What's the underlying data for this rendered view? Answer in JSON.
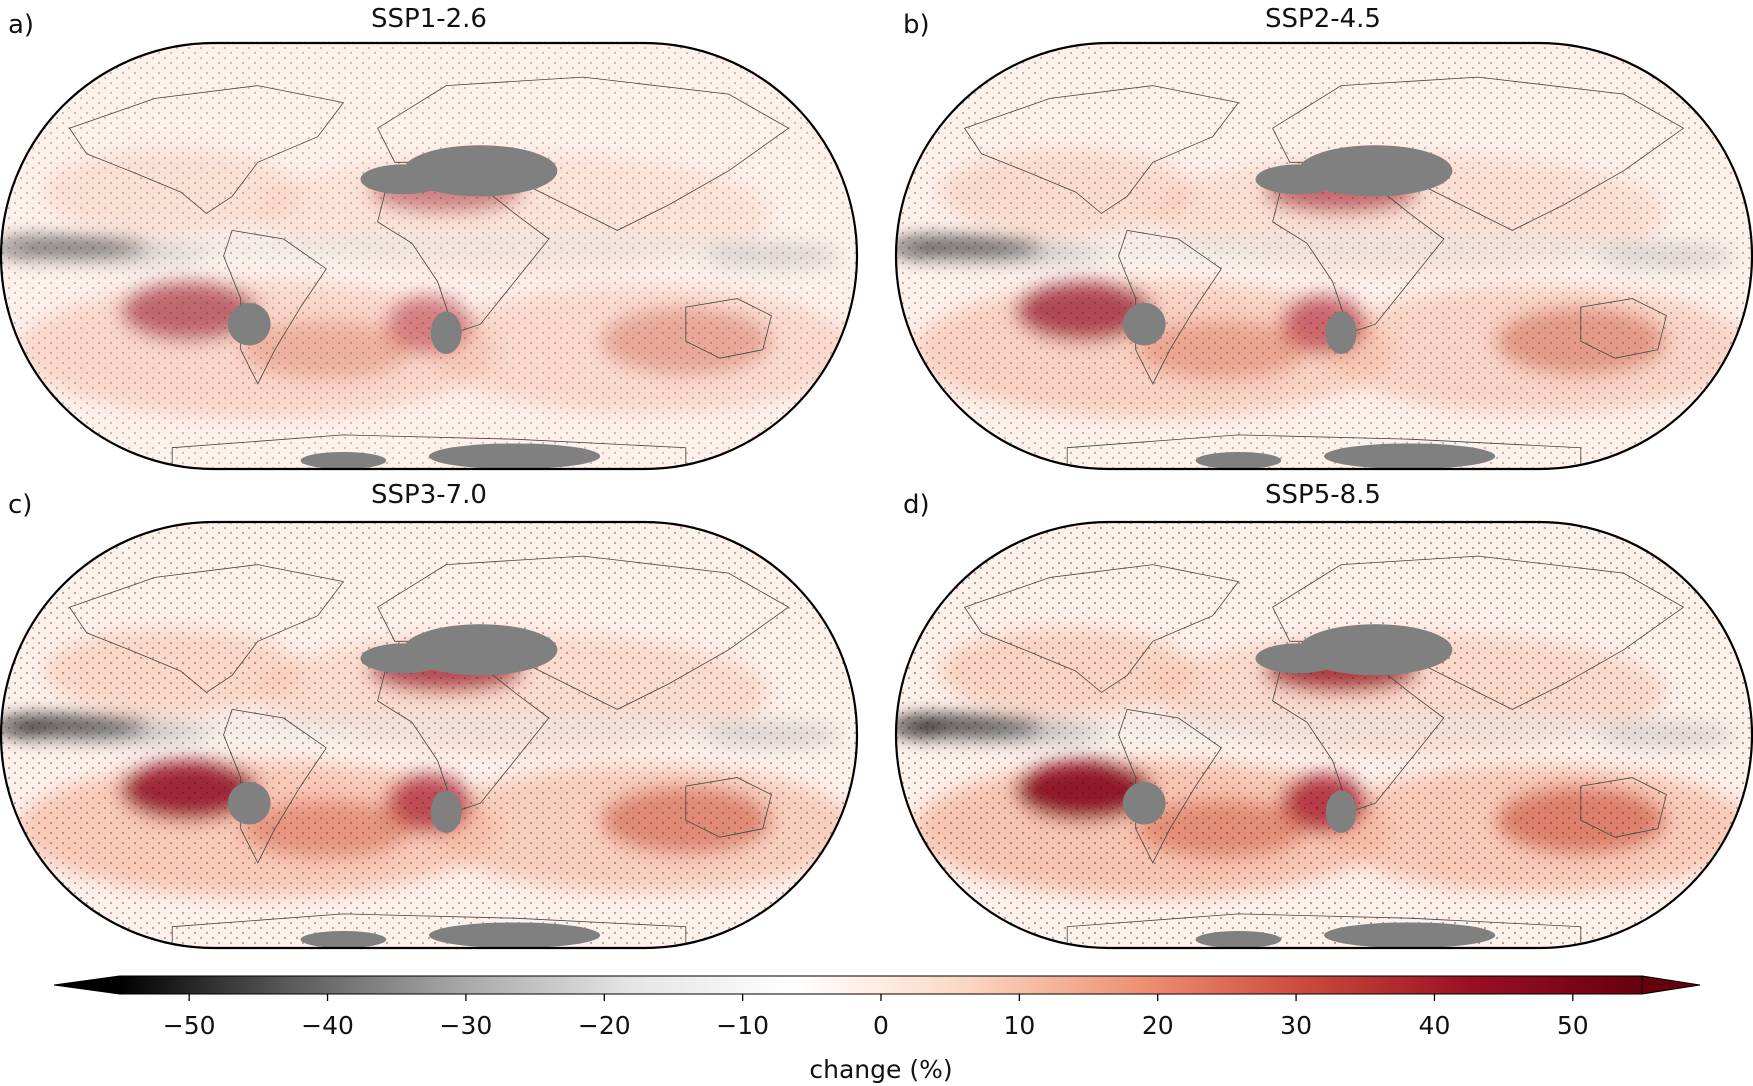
{
  "panels": [
    {
      "letter": "a)",
      "title": "SSP1-2.6"
    },
    {
      "letter": "b)",
      "title": "SSP2-4.5"
    },
    {
      "letter": "c)",
      "title": "SSP3-7.0"
    },
    {
      "letter": "d)",
      "title": "SSP5-8.5"
    }
  ],
  "colorbar": {
    "label": "change (%)",
    "min": -55,
    "max": 55,
    "extend": "both",
    "ticks": [
      -50,
      -40,
      -30,
      -20,
      -10,
      0,
      10,
      20,
      30,
      40,
      50
    ],
    "tick_labels": [
      "−50",
      "−40",
      "−30",
      "−20",
      "−10",
      "0",
      "10",
      "20",
      "30",
      "40",
      "50"
    ],
    "colormap": [
      "#000000",
      "#5a5a5a",
      "#a6a6a6",
      "#e4e4e4",
      "#ffffff",
      "#fbd7c2",
      "#ef9375",
      "#cb4a3c",
      "#990f22",
      "#67000d"
    ]
  },
  "colors": {
    "masked_land": "#808080",
    "ocean_background": "#fdf1ec",
    "coastline": "#444444"
  }
}
